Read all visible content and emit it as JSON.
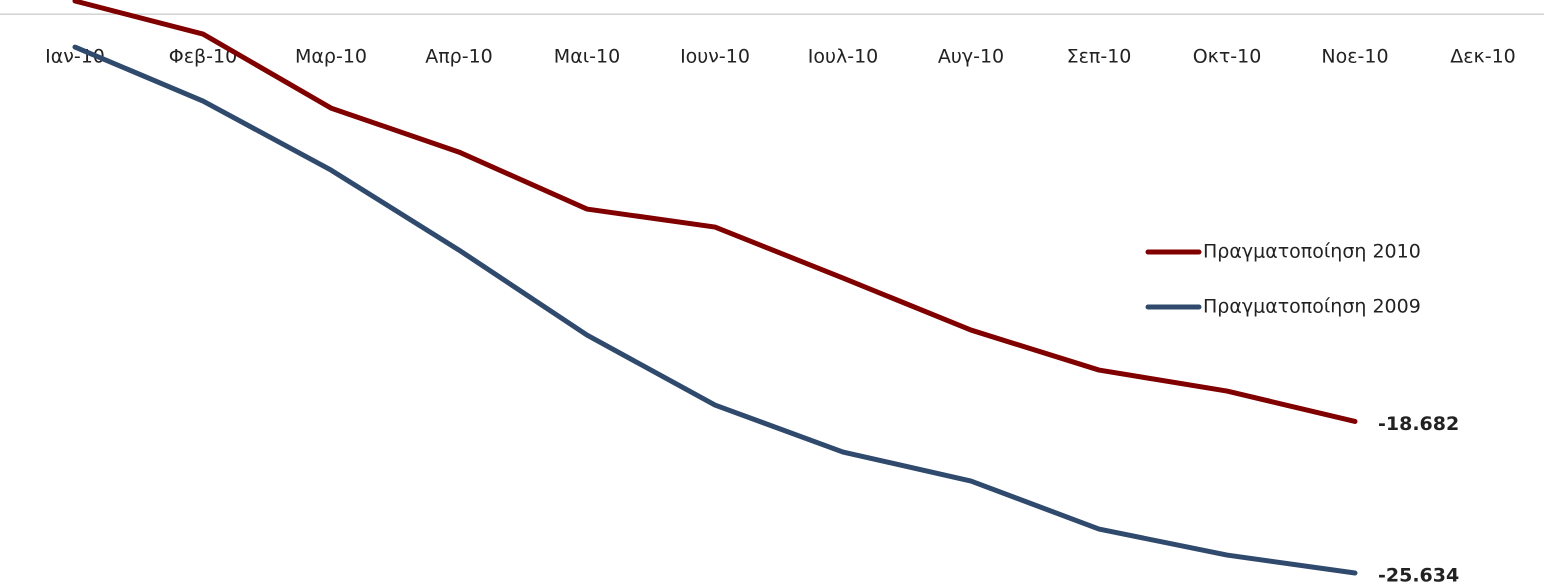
{
  "chart_data": {
    "type": "line",
    "categories": [
      "Ιαν-10",
      "Φεβ-10",
      "Μαρ-10",
      "Απρ-10",
      "Μαι-10",
      "Ιουν-10",
      "Ιουλ-10",
      "Αυγ-10",
      "Σεπ-10",
      "Οκτ-10",
      "Νοε-10",
      "Δεκ-10"
    ],
    "series": [
      {
        "name": "Πραγματοποίηση 2010",
        "color": "#800000",
        "values": [
          600,
          -917,
          -4311,
          -6329,
          -8943,
          -9768,
          -12107,
          -14492,
          -16326,
          -17289,
          -18682,
          null
        ],
        "value_labels": [
          null,
          null,
          null,
          null,
          null,
          null,
          null,
          null,
          null,
          null,
          "-18.682",
          null
        ]
      },
      {
        "name": "Πραγματοποίηση 2009",
        "color": "#2f4a6d",
        "values": [
          -1513,
          -3990,
          -7154,
          -10823,
          -14721,
          -17931,
          -20087,
          -21417,
          -23618,
          -24810,
          -25634,
          null
        ],
        "value_labels": [
          null,
          null,
          null,
          null,
          null,
          null,
          null,
          null,
          null,
          null,
          "-25.634",
          null
        ]
      }
    ],
    "ylim": [
      -26000,
      600
    ],
    "legend": "right"
  }
}
